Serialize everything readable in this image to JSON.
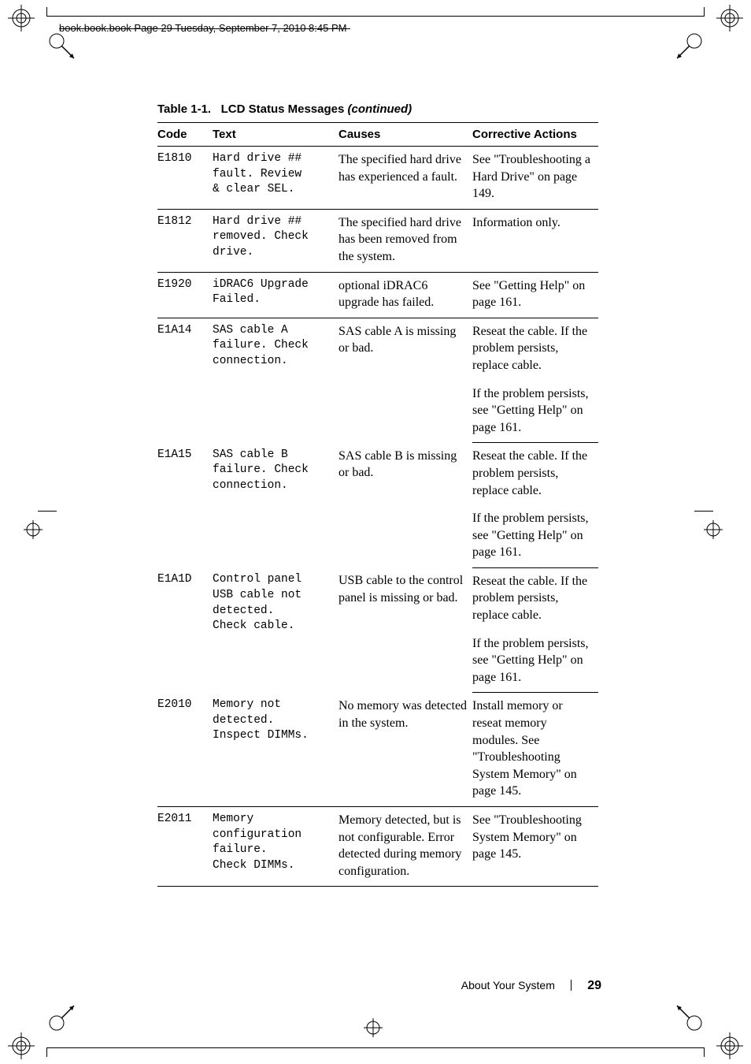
{
  "header": {
    "running_head": "book.book.book  Page 29  Tuesday, September 7, 2010  8:45 PM"
  },
  "table": {
    "number": "Table 1-1.",
    "title": "LCD Status Messages",
    "continued": "(continued)",
    "columns": [
      "Code",
      "Text",
      "Causes",
      "Corrective Actions"
    ],
    "rows": [
      {
        "code": "E1810",
        "text": "Hard drive ##\nfault. Review\n& clear SEL.",
        "causes": "The specified hard drive has experienced a fault.",
        "actions": "See \"Troubleshooting a Hard Drive\" on page 149."
      },
      {
        "code": "E1812",
        "text": "Hard drive ##\nremoved. Check\ndrive.",
        "causes": "The specified hard drive has been removed from the system.",
        "actions": "Information only."
      },
      {
        "code": "E1920",
        "text": "iDRAC6 Upgrade\nFailed.",
        "causes": "optional iDRAC6 upgrade has failed.",
        "actions": "See \"Getting Help\" on page 161."
      },
      {
        "code": "E1A14",
        "text": "SAS cable A\nfailure. Check\nconnection.",
        "causes": "SAS cable A is missing or bad.",
        "actions": "Reseat the cable. If the problem persists, replace cable.",
        "actions2": "If the problem persists, see \"Getting Help\" on page 161."
      },
      {
        "code": "E1A15",
        "text": "SAS cable B\nfailure. Check\nconnection.",
        "causes": "SAS cable B is missing or bad.",
        "actions": "Reseat the cable. If the problem persists, replace cable.",
        "actions2": "If the problem persists, see \"Getting Help\" on page 161."
      },
      {
        "code": "E1A1D",
        "text": "Control panel\nUSB cable not\ndetected.\nCheck cable.",
        "causes": "USB cable to the control panel is missing or bad.",
        "actions": "Reseat the cable. If the problem persists, replace cable.",
        "actions2": "If the problem persists, see \"Getting Help\" on page 161."
      },
      {
        "code": "E2010",
        "text": "Memory not\ndetected.\nInspect DIMMs.",
        "causes": "No memory was detected in the system.",
        "actions": "Install memory or reseat memory modules. See \"Troubleshooting System Memory\" on page 145."
      },
      {
        "code": "E2011",
        "text": "Memory\nconfiguration\nfailure.\nCheck DIMMs.",
        "causes": "Memory detected, but is not configurable. Error detected during memory configuration.",
        "actions": "See \"Troubleshooting System Memory\" on page 145."
      }
    ]
  },
  "footer": {
    "section": "About Your System",
    "page": "29"
  }
}
